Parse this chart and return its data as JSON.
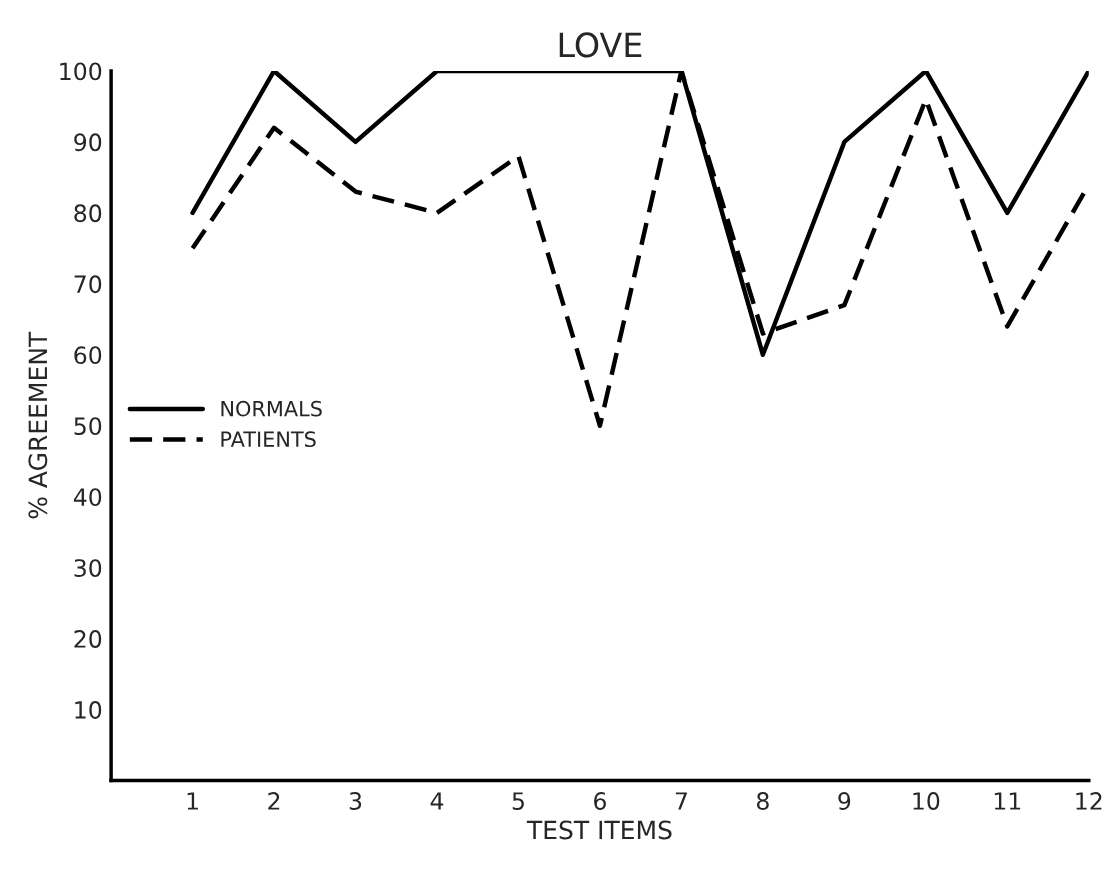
{
  "chart_data": {
    "type": "line",
    "title": "LOVE",
    "xlabel": "TEST ITEMS",
    "ylabel": "% AGREEMENT",
    "x": [
      1,
      2,
      3,
      4,
      5,
      6,
      7,
      8,
      9,
      10,
      11,
      12
    ],
    "series": [
      {
        "name": "NORMALS",
        "color": "#000000",
        "line_style": "solid",
        "values": [
          80,
          100,
          90,
          100,
          100,
          100,
          100,
          60,
          90,
          100,
          80,
          100
        ]
      },
      {
        "name": "PATIENTS",
        "color": "#000000",
        "line_style": "dashed",
        "values": [
          75,
          92,
          83,
          80,
          88,
          50,
          100,
          63,
          67,
          96,
          64,
          84
        ]
      }
    ],
    "xlim": [
      0,
      12
    ],
    "xticks": [
      1,
      2,
      3,
      4,
      5,
      6,
      7,
      8,
      9,
      10,
      11,
      12
    ],
    "ylim": [
      0,
      100
    ],
    "yticks": [
      10,
      20,
      30,
      40,
      50,
      60,
      70,
      80,
      90,
      100
    ],
    "grid": false,
    "legend": "center left",
    "marker": "none"
  }
}
